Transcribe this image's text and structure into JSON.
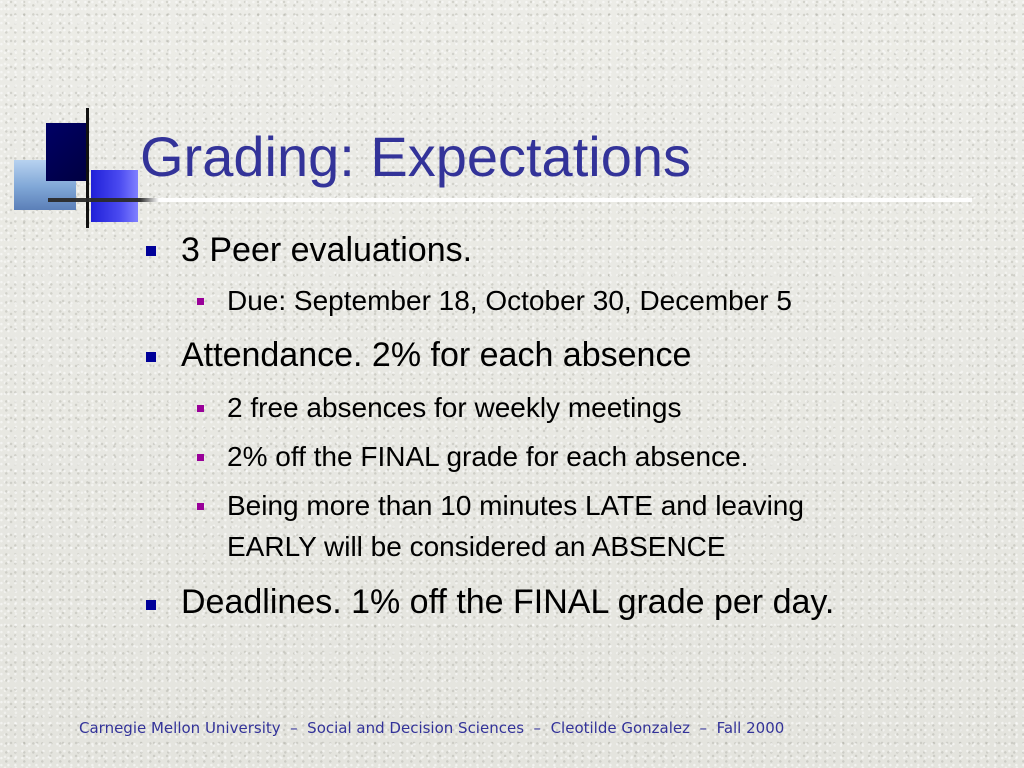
{
  "slide": {
    "title": "Grading: Expectations",
    "bullets": [
      {
        "level": 1,
        "text": "3 Peer evaluations."
      },
      {
        "level": 2,
        "text": "Due: September 18, October 30, December 5"
      },
      {
        "level": 1,
        "text": "Attendance.  2% for each absence"
      },
      {
        "level": 2,
        "text": "2 free absences for weekly meetings"
      },
      {
        "level": 2,
        "text": "2% off the FINAL grade for each absence."
      },
      {
        "level": 2,
        "text": "Being more than 10 minutes LATE and leaving"
      },
      {
        "level": 2,
        "text": "EARLY will be considered an ABSENCE"
      },
      {
        "level": 1,
        "text": "Deadlines.  1% off the FINAL grade per day."
      }
    ],
    "footer": "Carnegie Mellon University  –  Social and Decision Sciences  –  Cleotilde Gonzalez  –  Fall 2000",
    "colors": {
      "title": "#333399",
      "bullet_level1": "#000099",
      "bullet_level2": "#990099",
      "footer": "#333399"
    }
  }
}
